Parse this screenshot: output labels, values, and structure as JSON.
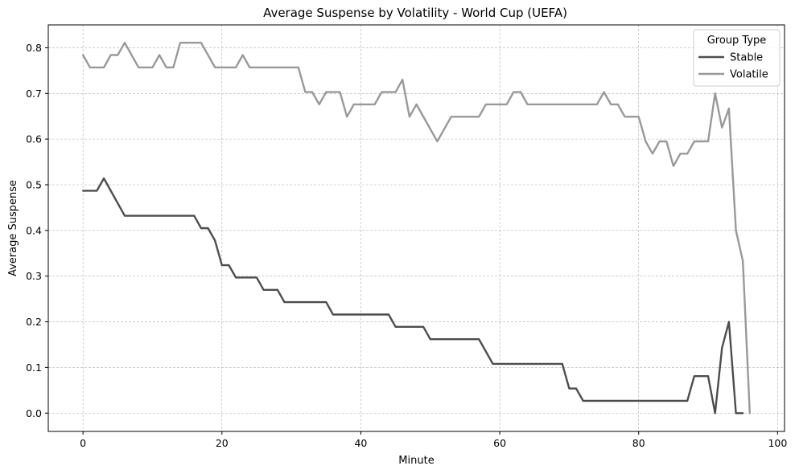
{
  "chart_data": {
    "type": "line",
    "title": "Average Suspense by Volatility - World Cup (UEFA)",
    "xlabel": "Minute",
    "ylabel": "Average Suspense",
    "xlim": [
      -5,
      101
    ],
    "ylim": [
      -0.04,
      0.85
    ],
    "x_ticks": [
      0,
      20,
      40,
      60,
      80,
      100
    ],
    "y_ticks": [
      0.0,
      0.1,
      0.2,
      0.3,
      0.4,
      0.5,
      0.6,
      0.7,
      0.8
    ],
    "grid": true,
    "legend": {
      "title": "Group Type",
      "placement": "top-right"
    },
    "series": [
      {
        "name": "Stable",
        "color": "#4d4d4d",
        "points": [
          [
            0,
            0.487
          ],
          [
            2,
            0.487
          ],
          [
            3,
            0.514
          ],
          [
            6,
            0.432
          ],
          [
            16,
            0.432
          ],
          [
            17,
            0.405
          ],
          [
            18,
            0.405
          ],
          [
            19,
            0.378
          ],
          [
            20,
            0.324
          ],
          [
            21,
            0.324
          ],
          [
            22,
            0.297
          ],
          [
            25,
            0.297
          ],
          [
            26,
            0.27
          ],
          [
            28,
            0.27
          ],
          [
            29,
            0.243
          ],
          [
            35,
            0.243
          ],
          [
            36,
            0.216
          ],
          [
            44,
            0.216
          ],
          [
            45,
            0.189
          ],
          [
            49,
            0.189
          ],
          [
            50,
            0.162
          ],
          [
            57,
            0.162
          ],
          [
            59,
            0.108
          ],
          [
            69,
            0.108
          ],
          [
            70,
            0.054
          ],
          [
            71,
            0.054
          ],
          [
            72,
            0.027
          ],
          [
            87,
            0.027
          ],
          [
            88,
            0.081
          ],
          [
            90,
            0.081
          ],
          [
            91,
            0.0
          ],
          [
            92,
            0.143
          ],
          [
            93,
            0.2
          ],
          [
            94,
            0.0
          ],
          [
            95,
            0.0
          ]
        ]
      },
      {
        "name": "Volatile",
        "color": "#999999",
        "points": [
          [
            0,
            0.784
          ],
          [
            1,
            0.757
          ],
          [
            3,
            0.757
          ],
          [
            4,
            0.784
          ],
          [
            5,
            0.784
          ],
          [
            6,
            0.811
          ],
          [
            8,
            0.757
          ],
          [
            10,
            0.757
          ],
          [
            11,
            0.784
          ],
          [
            12,
            0.757
          ],
          [
            13,
            0.757
          ],
          [
            14,
            0.811
          ],
          [
            17,
            0.811
          ],
          [
            19,
            0.757
          ],
          [
            22,
            0.757
          ],
          [
            23,
            0.784
          ],
          [
            24,
            0.757
          ],
          [
            31,
            0.757
          ],
          [
            32,
            0.703
          ],
          [
            33,
            0.703
          ],
          [
            34,
            0.676
          ],
          [
            35,
            0.703
          ],
          [
            37,
            0.703
          ],
          [
            38,
            0.649
          ],
          [
            39,
            0.676
          ],
          [
            42,
            0.676
          ],
          [
            43,
            0.703
          ],
          [
            45,
            0.703
          ],
          [
            46,
            0.73
          ],
          [
            47,
            0.649
          ],
          [
            48,
            0.676
          ],
          [
            51,
            0.595
          ],
          [
            53,
            0.649
          ],
          [
            57,
            0.649
          ],
          [
            58,
            0.676
          ],
          [
            61,
            0.676
          ],
          [
            62,
            0.703
          ],
          [
            63,
            0.703
          ],
          [
            64,
            0.676
          ],
          [
            74,
            0.676
          ],
          [
            75,
            0.703
          ],
          [
            76,
            0.676
          ],
          [
            77,
            0.676
          ],
          [
            78,
            0.649
          ],
          [
            80,
            0.649
          ],
          [
            81,
            0.595
          ],
          [
            82,
            0.568
          ],
          [
            83,
            0.595
          ],
          [
            84,
            0.595
          ],
          [
            85,
            0.541
          ],
          [
            86,
            0.568
          ],
          [
            87,
            0.568
          ],
          [
            88,
            0.595
          ],
          [
            90,
            0.595
          ],
          [
            91,
            0.7
          ],
          [
            92,
            0.625
          ],
          [
            93,
            0.667
          ],
          [
            94,
            0.4
          ],
          [
            95,
            0.333
          ],
          [
            96,
            0.0
          ]
        ]
      }
    ]
  }
}
